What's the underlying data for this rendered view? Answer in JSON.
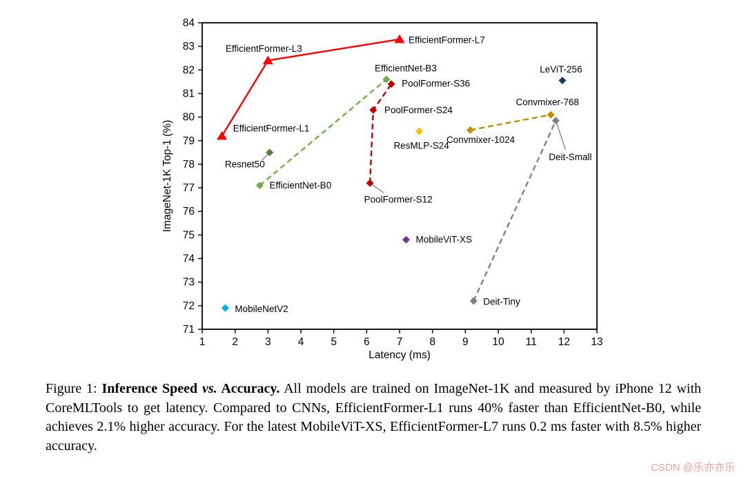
{
  "watermark": {
    "text": "CSDN @乐亦亦乐",
    "color": "#f0a2a2"
  },
  "caption": {
    "figure_label": "Figure 1:",
    "title_part1": "Inference Speed",
    "title_vs": "vs.",
    "title_part2": "Accuracy.",
    "body": "All models are trained on ImageNet-1K and measured by iPhone 12 with CoreMLTools to get latency. Compared to CNNs, EfficientFormer-L1 runs 40% faster than EfficientNet-B0, while achieves 2.1% higher accuracy. For the latest MobileViT-XS, EfficientFormer-L7 runs 0.2 ms faster with 8.5% higher accuracy."
  },
  "chart_data": {
    "type": "scatter",
    "title": "",
    "xlabel": "Latency (ms)",
    "ylabel": "ImageNet-1K Top-1 (%)",
    "xlim": [
      1,
      13
    ],
    "ylim": [
      71,
      84
    ],
    "xticks": [
      1,
      2,
      3,
      4,
      5,
      6,
      7,
      8,
      9,
      10,
      11,
      12,
      13
    ],
    "yticks": [
      71,
      72,
      73,
      74,
      75,
      76,
      77,
      78,
      79,
      80,
      81,
      82,
      83,
      84
    ],
    "grid": false,
    "legend_position": "none",
    "series": [
      {
        "name": "EfficientFormer",
        "color": "#ff0000",
        "marker": "triangle",
        "line": "solid",
        "points": [
          {
            "label": "EfficientFormer-L1",
            "x": 1.6,
            "y": 79.2,
            "dx": 16,
            "dy": -11,
            "anchor": "start"
          },
          {
            "label": "EfficientFormer-L3",
            "x": 3.0,
            "y": 82.4,
            "dx": -6,
            "dy": -17,
            "anchor": "middle"
          },
          {
            "label": "EfficientFormer-L7",
            "x": 7.0,
            "y": 83.3,
            "dx": 13,
            "dy": 1,
            "anchor": "start"
          }
        ]
      },
      {
        "name": "EfficientNet",
        "color": "#70ad47",
        "marker": "diamond",
        "line": "dashed",
        "points": [
          {
            "label": "EfficientNet-B0",
            "x": 2.75,
            "y": 77.1,
            "dx": 14,
            "dy": 0,
            "anchor": "start"
          },
          {
            "label": "EfficientNet-B3",
            "x": 6.6,
            "y": 81.6,
            "dx": 28,
            "dy": -16,
            "anchor": "middle"
          }
        ]
      },
      {
        "name": "PoolFormer",
        "color": "#c00000",
        "marker": "diamond",
        "line": "dashed",
        "points": [
          {
            "label": "PoolFormer-S12",
            "x": 6.1,
            "y": 77.2,
            "dx": 41,
            "dy": 24,
            "anchor": "middle",
            "leader": [
              20,
              14
            ]
          },
          {
            "label": "PoolFormer-S24",
            "x": 6.2,
            "y": 80.3,
            "dx": 16,
            "dy": 0,
            "anchor": "start"
          },
          {
            "label": "PoolFormer-S36",
            "x": 6.75,
            "y": 81.4,
            "dx": 15,
            "dy": -1,
            "anchor": "start"
          }
        ]
      },
      {
        "name": "Convmixer",
        "color": "#bf8f00",
        "marker": "diamond",
        "line": "dashed",
        "points": [
          {
            "label": "Convmixer-1024",
            "x": 9.15,
            "y": 79.45,
            "dx": 15,
            "dy": 14,
            "anchor": "middle"
          },
          {
            "label": "Convmixer-768",
            "x": 11.6,
            "y": 80.1,
            "dx": -5,
            "dy": -18,
            "anchor": "middle"
          }
        ]
      },
      {
        "name": "Deit",
        "color": "#808080",
        "marker": "diamond",
        "line": "dashed",
        "points": [
          {
            "label": "Deit-Tiny",
            "x": 9.25,
            "y": 72.2,
            "dx": 14,
            "dy": 1,
            "anchor": "start"
          },
          {
            "label": "Deit-Small",
            "x": 11.75,
            "y": 79.85,
            "dx": 21,
            "dy": 53,
            "anchor": "middle",
            "leader": [
              14,
              42
            ]
          }
        ]
      },
      {
        "name": "ResNet",
        "color": "#548235",
        "marker": "diamond",
        "line": "none",
        "points": [
          {
            "label": "Resnet50",
            "x": 3.05,
            "y": 78.5,
            "dx": -7,
            "dy": 17,
            "anchor": "end",
            "leader": [
              -11,
              11
            ]
          }
        ]
      },
      {
        "name": "ResMLP",
        "color": "#ffc000",
        "marker": "diamond",
        "line": "none",
        "points": [
          {
            "label": "ResMLP-S24",
            "x": 7.6,
            "y": 79.4,
            "dx": 3,
            "dy": 21,
            "anchor": "middle"
          }
        ]
      },
      {
        "name": "LeViT",
        "color": "#203864",
        "marker": "diamond",
        "line": "none",
        "points": [
          {
            "label": "LeViT-256",
            "x": 11.95,
            "y": 81.55,
            "dx": -2,
            "dy": -16,
            "anchor": "middle"
          }
        ]
      },
      {
        "name": "MobileViT",
        "color": "#7030a0",
        "marker": "diamond",
        "line": "none",
        "points": [
          {
            "label": "MobileViT-XS",
            "x": 7.2,
            "y": 74.8,
            "dx": 14,
            "dy": 0,
            "anchor": "start"
          }
        ]
      },
      {
        "name": "MobileNetV2",
        "color": "#00b0f0",
        "marker": "diamond",
        "line": "none",
        "points": [
          {
            "label": "MobileNetV2",
            "x": 1.7,
            "y": 71.9,
            "dx": 14,
            "dy": 1,
            "anchor": "start"
          }
        ]
      }
    ]
  }
}
